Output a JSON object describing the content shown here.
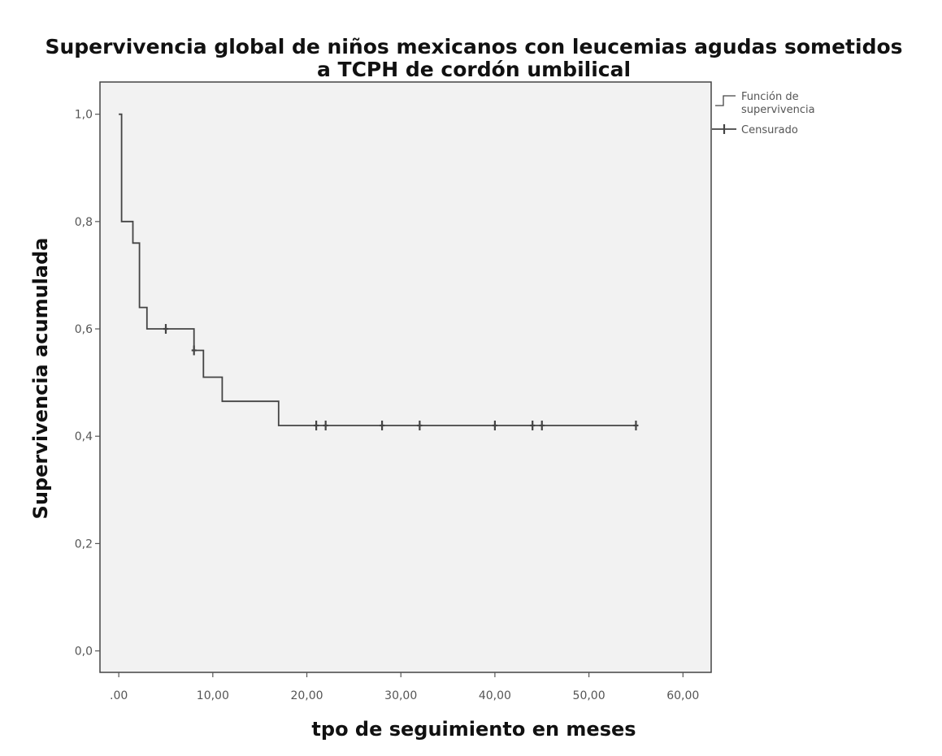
{
  "chart_data": {
    "type": "line",
    "subtype": "kaplan-meier-step",
    "title": "Supervivencia global de niños mexicanos con leucemias agudas sometidos",
    "subtitle": "a TCPH de cordón umbilical",
    "xlabel": "tpo de seguimiento en meses",
    "ylabel": "Supervivencia acumulada",
    "xlim": [
      -2,
      63
    ],
    "ylim": [
      -0.04,
      1.06
    ],
    "x_ticks": [
      0,
      10,
      20,
      30,
      40,
      50,
      60
    ],
    "x_tick_labels": [
      ".00",
      "10,00",
      "20,00",
      "30,00",
      "40,00",
      "50,00",
      "60,00"
    ],
    "y_ticks": [
      0,
      0.2,
      0.4,
      0.6,
      0.8,
      1.0
    ],
    "y_tick_labels": [
      "0,0",
      "0,2",
      "0,4",
      "0,6",
      "0,8",
      "1,0"
    ],
    "grid": false,
    "legend_position": "right",
    "series": [
      {
        "name": "Función de supervivencia",
        "step_points": [
          [
            0,
            1.0
          ],
          [
            0.3,
            1.0
          ],
          [
            0.3,
            0.8
          ],
          [
            1.5,
            0.8
          ],
          [
            1.5,
            0.76
          ],
          [
            2.2,
            0.76
          ],
          [
            2.2,
            0.64
          ],
          [
            3.0,
            0.64
          ],
          [
            3.0,
            0.6
          ],
          [
            8.0,
            0.6
          ],
          [
            8.0,
            0.56
          ],
          [
            9.0,
            0.56
          ],
          [
            9.0,
            0.51
          ],
          [
            11.0,
            0.51
          ],
          [
            11.0,
            0.465
          ],
          [
            17.0,
            0.465
          ],
          [
            17.0,
            0.42
          ],
          [
            55.0,
            0.42
          ]
        ]
      },
      {
        "name": "Censurado",
        "censored": [
          [
            5,
            0.6
          ],
          [
            8,
            0.56
          ],
          [
            21,
            0.42
          ],
          [
            22,
            0.42
          ],
          [
            28,
            0.42
          ],
          [
            32,
            0.42
          ],
          [
            40,
            0.42
          ],
          [
            44,
            0.42
          ],
          [
            45,
            0.42
          ],
          [
            55,
            0.42
          ]
        ]
      }
    ],
    "colors": {
      "plot_background": "#f2f2f2",
      "frame": "#444444",
      "line": "#444444",
      "tick_text": "#555555"
    }
  }
}
